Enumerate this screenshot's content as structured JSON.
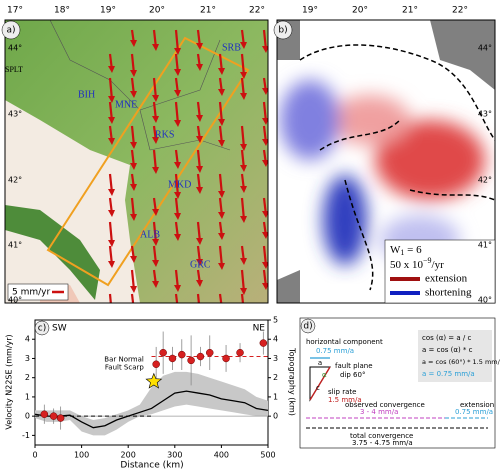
{
  "panel_a": {
    "label": "a)",
    "lon_labels": [
      "17°",
      "18°",
      "19°",
      "20°",
      "21°",
      "22°"
    ],
    "lat_labels": [
      "44°",
      "43°",
      "42°",
      "41°",
      "40°"
    ],
    "places": [
      "SPLT",
      "BIH",
      "MNE",
      "SRB",
      "RKS",
      "MKD",
      "ALB",
      "GRC"
    ],
    "scale": "5 mm/yr"
  },
  "panel_b": {
    "label": "b)",
    "lon_labels": [
      "19°",
      "20°",
      "21°",
      "22°"
    ],
    "lat_labels": [
      "44°",
      "43°",
      "42°",
      "41°",
      "40°"
    ],
    "w_label": "W",
    "w_sub": "1",
    "w_value": " = 6",
    "scale": "50 x 10",
    "scale_exp": "−9",
    "scale_unit": "/yr",
    "legend": [
      "extension",
      "shortening"
    ]
  },
  "chart_data": {
    "type": "scatter",
    "label": "c)",
    "left_end": "SW",
    "right_end": "NE",
    "xlabel": "Distance (km)",
    "ylabel": "Velocity N22SE (mm/yr)",
    "y2label": "Topography (km)",
    "annotation": [
      "Bar Normal",
      "Fault Scarp"
    ],
    "annotation_x": 255,
    "annotation_y": 1.8,
    "xlim": [
      0,
      500
    ],
    "xticks": [
      0,
      100,
      200,
      300,
      400,
      500
    ],
    "ylim": [
      -1.5,
      5
    ],
    "yticks": [
      -1,
      0,
      1,
      2,
      3,
      4
    ],
    "y2lim": [
      -1.5,
      5
    ],
    "y2ticks": [
      0,
      1,
      2,
      3,
      4,
      5
    ],
    "points": {
      "color": "#d62020",
      "x": [
        20,
        40,
        55,
        260,
        275,
        295,
        315,
        335,
        355,
        375,
        410,
        440,
        490
      ],
      "values": [
        0.1,
        0.0,
        -0.1,
        2.7,
        3.3,
        3.0,
        3.2,
        2.9,
        3.1,
        3.3,
        3.0,
        3.3,
        3.8
      ],
      "errors": [
        0.5,
        0.4,
        0.6,
        0.9,
        1.1,
        0.6,
        0.8,
        1.3,
        0.5,
        0.9,
        0.7,
        0.5,
        0.6
      ]
    },
    "levels": [
      {
        "x": [
          0,
          250
        ],
        "value": 0,
        "color": "#000000"
      },
      {
        "x": [
          250,
          500
        ],
        "value": 3.1,
        "color": "#d62020"
      }
    ],
    "topography": {
      "axis": "y2",
      "color": "#000000",
      "x": [
        0,
        25,
        50,
        75,
        100,
        125,
        150,
        175,
        200,
        225,
        250,
        275,
        300,
        325,
        350,
        375,
        400,
        425,
        450,
        475,
        500
      ],
      "values": [
        0.1,
        0.0,
        0.0,
        0.05,
        -0.3,
        -0.6,
        -0.5,
        -0.2,
        0.0,
        0.2,
        0.4,
        0.8,
        1.2,
        1.3,
        1.2,
        1.1,
        0.9,
        0.8,
        0.7,
        0.4,
        0.3
      ]
    },
    "topography_range": {
      "axis": "y2",
      "color": "#c8c8c8",
      "x": [
        0,
        25,
        50,
        75,
        100,
        125,
        150,
        175,
        200,
        225,
        250,
        275,
        300,
        325,
        350,
        375,
        400,
        425,
        450,
        475,
        500
      ],
      "low": [
        -0.1,
        -0.3,
        -0.3,
        -0.2,
        -0.8,
        -1.0,
        -1.0,
        -0.7,
        -0.3,
        0,
        0.1,
        0.3,
        0.5,
        0.6,
        0.5,
        0.4,
        0.3,
        0.2,
        0.1,
        0,
        0
      ],
      "high": [
        0.3,
        0.3,
        0.3,
        0.3,
        0,
        -0.2,
        -0.1,
        0.1,
        0.3,
        0.6,
        1.5,
        2.1,
        2.3,
        2.3,
        2.2,
        2.0,
        1.8,
        1.6,
        1.4,
        1.0,
        0.8
      ]
    }
  },
  "panel_d": {
    "label": "d)",
    "horizontal": "horizontal component",
    "horizontal_rate": "0.75 mm/a",
    "a": "a",
    "c": "c",
    "alpha": "α",
    "fault_plane": "fault plane",
    "dip": "dip 60°",
    "slip": "slip rate",
    "slip_rate": "1.5 mm/a",
    "equations": [
      "cos (α) = a / c",
      "a = cos (α) * c",
      "a = cos (60°) * 1.5 mm/a",
      "a = 0.75 mm/a"
    ],
    "observed": "observed convergence",
    "observed_rate": "3 - 4 mm/a",
    "extension": "extension",
    "extension_rate": "0.75 mm/a",
    "total": "total convergence",
    "total_rate": "3.75 - 4.75 mm/a"
  }
}
